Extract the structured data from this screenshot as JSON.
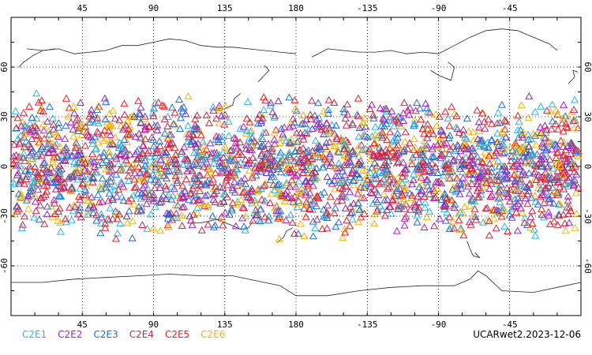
{
  "map": {
    "projection": "cylindrical equidistant",
    "lon_range": [
      0,
      360
    ],
    "lat_range": [
      -90,
      90
    ],
    "top_axis_labels": [
      "45",
      "90",
      "135",
      "180",
      "-135",
      "-90",
      "-45"
    ],
    "bottom_axis_labels": [
      "45",
      "90",
      "135",
      "180",
      "-135",
      "-90",
      "-45"
    ],
    "left_axis_labels": [
      "60",
      "30",
      "0",
      "-30",
      "-60"
    ],
    "right_axis_labels": [
      "60",
      "30",
      "0",
      "-30",
      "-60"
    ],
    "lon_ticks": [
      45,
      90,
      135,
      180,
      225,
      270,
      315
    ],
    "lat_ticks": [
      60,
      30,
      0,
      -30,
      -60
    ],
    "grid": "dotted",
    "marker": "open triangle",
    "observation_band_lat": [
      -45,
      45
    ]
  },
  "legend": {
    "items": [
      {
        "label": "C2E1",
        "color": "#29b5e6"
      },
      {
        "label": "C2E2",
        "color": "#a020c8"
      },
      {
        "label": "C2E3",
        "color": "#1e6fd8"
      },
      {
        "label": "C2E4",
        "color": "#d0234a"
      },
      {
        "label": "C2E5",
        "color": "#e81e1e"
      },
      {
        "label": "C2E6",
        "color": "#f5b400"
      }
    ]
  },
  "product_label": "UCARwet2.2023-12-06"
}
